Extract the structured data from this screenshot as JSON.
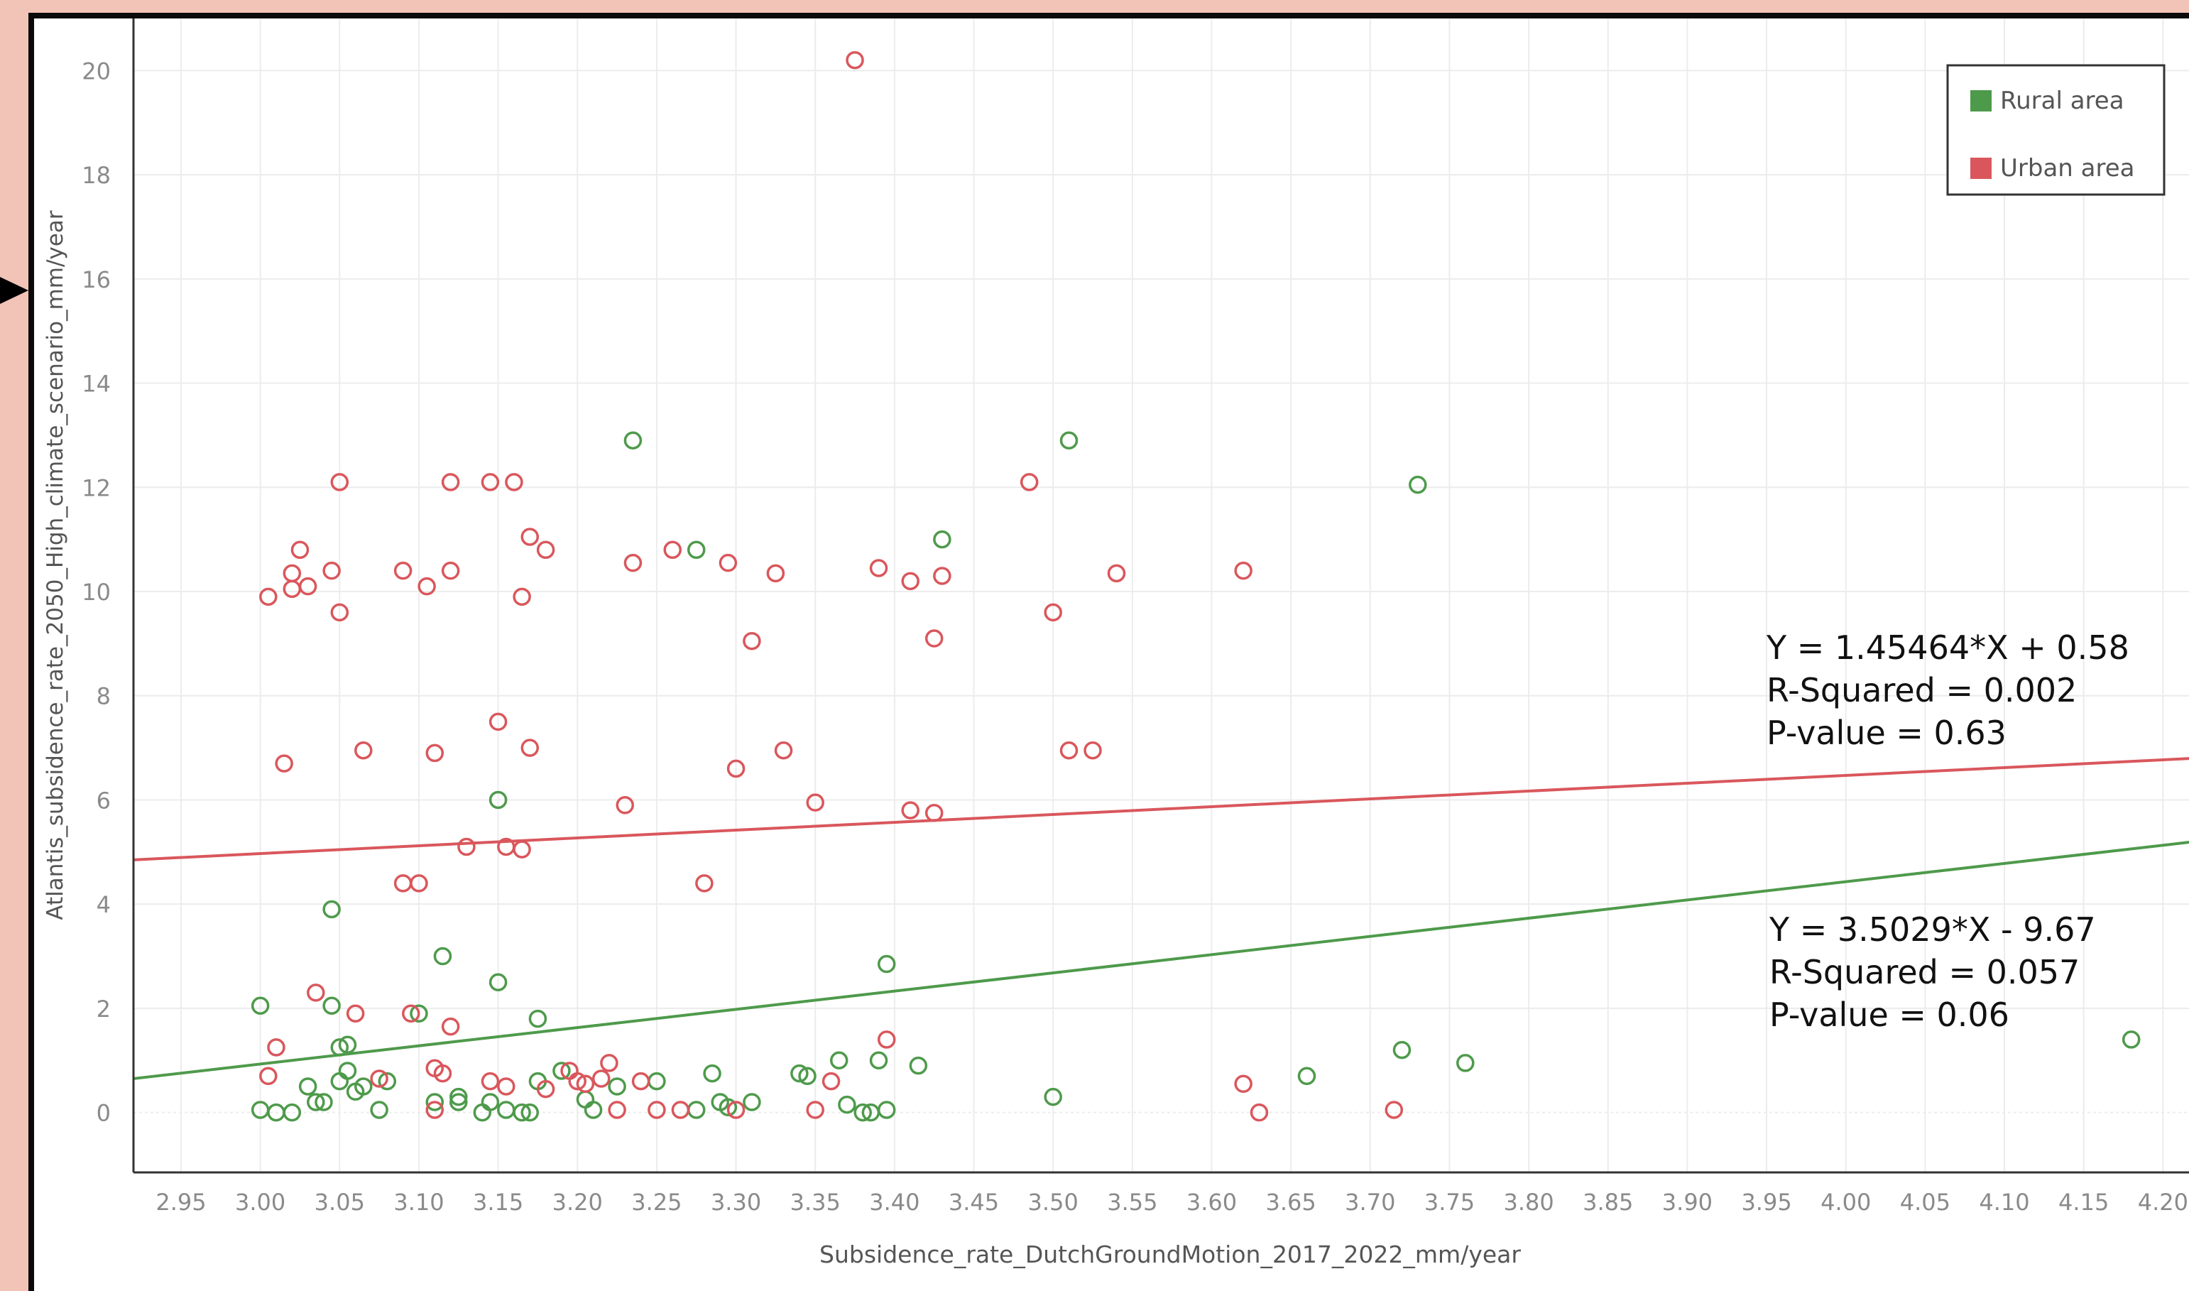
{
  "colors": {
    "background": "#f2c4b8",
    "frame_border": "#0a0a0a",
    "rural": "#4e9a4b",
    "urban": "#d9575c",
    "grid": "#ececec",
    "axis_text": "#8a8a8a",
    "axis_line": "#333333"
  },
  "chart_data": {
    "type": "scatter",
    "xlabel": "Subsidence_rate_DutchGroundMotion_2017_2022_mm/year",
    "ylabel": "Atlantis_subsidence_rate_2050_High_climate_scenario_mm/year",
    "xlim": [
      2.92,
      4.22
    ],
    "ylim": [
      -1.15,
      21.0
    ],
    "x_ticks": [
      "2.95",
      "3.00",
      "3.05",
      "3.10",
      "3.15",
      "3.20",
      "3.25",
      "3.30",
      "3.35",
      "3.40",
      "3.45",
      "3.50",
      "3.55",
      "3.60",
      "3.65",
      "3.70",
      "3.75",
      "3.80",
      "3.85",
      "3.90",
      "3.95",
      "4.00",
      "4.05",
      "4.10",
      "4.15",
      "4.20"
    ],
    "y_ticks": [
      "0",
      "2",
      "4",
      "6",
      "8",
      "10",
      "12",
      "14",
      "16",
      "18",
      "20"
    ],
    "grid": true,
    "legend": {
      "position": "top-right",
      "entries": [
        {
          "label": "Rural area",
          "color": "#4e9a4b"
        },
        {
          "label": "Urban area",
          "color": "#d9575c"
        }
      ]
    },
    "annotations": {
      "urban": [
        "Y = 1.45464*X + 0.58",
        "R-Squared = 0.002",
        "P-value = 0.63"
      ],
      "rural": [
        "Y = 3.5029*X - 9.67",
        "R-Squared = 0.057",
        "P-value = 0.06"
      ]
    },
    "series": [
      {
        "name": "Rural area",
        "color": "#4e9a4b",
        "trendline": {
          "y_at_xmin": 0.65,
          "y_at_xmax": 5.2
        },
        "points": [
          [
            3.0,
            0.05
          ],
          [
            3.0,
            2.05
          ],
          [
            3.01,
            0.0
          ],
          [
            3.02,
            0.0
          ],
          [
            3.03,
            0.5
          ],
          [
            3.035,
            0.2
          ],
          [
            3.04,
            0.2
          ],
          [
            3.045,
            2.05
          ],
          [
            3.045,
            3.9
          ],
          [
            3.05,
            1.25
          ],
          [
            3.05,
            0.6
          ],
          [
            3.055,
            0.8
          ],
          [
            3.055,
            1.3
          ],
          [
            3.06,
            0.4
          ],
          [
            3.065,
            0.5
          ],
          [
            3.075,
            0.05
          ],
          [
            3.08,
            0.6
          ],
          [
            3.1,
            1.9
          ],
          [
            3.11,
            0.2
          ],
          [
            3.115,
            3.0
          ],
          [
            3.125,
            0.3
          ],
          [
            3.125,
            0.2
          ],
          [
            3.14,
            0.0
          ],
          [
            3.145,
            0.2
          ],
          [
            3.15,
            6.0
          ],
          [
            3.15,
            2.5
          ],
          [
            3.155,
            0.05
          ],
          [
            3.165,
            0.0
          ],
          [
            3.17,
            0.0
          ],
          [
            3.175,
            1.8
          ],
          [
            3.175,
            0.6
          ],
          [
            3.19,
            0.8
          ],
          [
            3.205,
            0.25
          ],
          [
            3.21,
            0.05
          ],
          [
            3.225,
            0.5
          ],
          [
            3.235,
            12.9
          ],
          [
            3.25,
            0.6
          ],
          [
            3.275,
            10.8
          ],
          [
            3.275,
            0.05
          ],
          [
            3.285,
            0.75
          ],
          [
            3.29,
            0.2
          ],
          [
            3.295,
            0.1
          ],
          [
            3.31,
            0.2
          ],
          [
            3.34,
            0.75
          ],
          [
            3.345,
            0.7
          ],
          [
            3.365,
            1.0
          ],
          [
            3.37,
            0.15
          ],
          [
            3.38,
            0.0
          ],
          [
            3.385,
            0.0
          ],
          [
            3.39,
            1.0
          ],
          [
            3.395,
            0.05
          ],
          [
            3.395,
            2.85
          ],
          [
            3.415,
            0.9
          ],
          [
            3.43,
            11.0
          ],
          [
            3.5,
            0.3
          ],
          [
            3.51,
            12.9
          ],
          [
            3.66,
            0.7
          ],
          [
            3.72,
            1.2
          ],
          [
            3.73,
            12.05
          ],
          [
            3.76,
            0.95
          ],
          [
            4.18,
            1.4
          ]
        ]
      },
      {
        "name": "Urban area",
        "color": "#d9575c",
        "trendline": {
          "y_at_xmin": 4.85,
          "y_at_xmax": 6.8
        },
        "points": [
          [
            3.005,
            9.9
          ],
          [
            3.005,
            0.7
          ],
          [
            3.01,
            1.25
          ],
          [
            3.015,
            6.7
          ],
          [
            3.02,
            10.35
          ],
          [
            3.02,
            10.05
          ],
          [
            3.025,
            10.8
          ],
          [
            3.03,
            10.1
          ],
          [
            3.035,
            2.3
          ],
          [
            3.045,
            10.4
          ],
          [
            3.05,
            12.1
          ],
          [
            3.05,
            9.6
          ],
          [
            3.06,
            1.9
          ],
          [
            3.065,
            6.95
          ],
          [
            3.075,
            0.65
          ],
          [
            3.09,
            10.4
          ],
          [
            3.09,
            4.4
          ],
          [
            3.095,
            1.9
          ],
          [
            3.1,
            4.4
          ],
          [
            3.105,
            10.1
          ],
          [
            3.11,
            6.9
          ],
          [
            3.11,
            0.85
          ],
          [
            3.11,
            0.05
          ],
          [
            3.115,
            0.75
          ],
          [
            3.12,
            12.1
          ],
          [
            3.12,
            10.4
          ],
          [
            3.12,
            1.65
          ],
          [
            3.13,
            5.1
          ],
          [
            3.145,
            12.1
          ],
          [
            3.145,
            0.6
          ],
          [
            3.15,
            7.5
          ],
          [
            3.155,
            5.1
          ],
          [
            3.155,
            0.5
          ],
          [
            3.16,
            12.1
          ],
          [
            3.165,
            5.05
          ],
          [
            3.165,
            9.9
          ],
          [
            3.17,
            11.05
          ],
          [
            3.17,
            7.0
          ],
          [
            3.18,
            10.8
          ],
          [
            3.18,
            0.45
          ],
          [
            3.195,
            0.8
          ],
          [
            3.2,
            0.6
          ],
          [
            3.205,
            0.55
          ],
          [
            3.215,
            0.65
          ],
          [
            3.22,
            0.95
          ],
          [
            3.225,
            0.05
          ],
          [
            3.23,
            5.9
          ],
          [
            3.235,
            10.55
          ],
          [
            3.24,
            0.6
          ],
          [
            3.25,
            0.05
          ],
          [
            3.26,
            10.8
          ],
          [
            3.265,
            0.05
          ],
          [
            3.28,
            4.4
          ],
          [
            3.295,
            10.55
          ],
          [
            3.3,
            6.6
          ],
          [
            3.3,
            0.05
          ],
          [
            3.31,
            9.05
          ],
          [
            3.325,
            10.35
          ],
          [
            3.33,
            6.95
          ],
          [
            3.35,
            5.95
          ],
          [
            3.35,
            0.05
          ],
          [
            3.36,
            0.6
          ],
          [
            3.375,
            20.2
          ],
          [
            3.39,
            10.45
          ],
          [
            3.395,
            1.4
          ],
          [
            3.41,
            5.8
          ],
          [
            3.41,
            10.2
          ],
          [
            3.425,
            5.75
          ],
          [
            3.425,
            9.1
          ],
          [
            3.43,
            10.3
          ],
          [
            3.485,
            12.1
          ],
          [
            3.5,
            9.6
          ],
          [
            3.51,
            6.95
          ],
          [
            3.525,
            6.95
          ],
          [
            3.54,
            10.35
          ],
          [
            3.62,
            10.4
          ],
          [
            3.62,
            0.55
          ],
          [
            3.63,
            0.0
          ],
          [
            3.715,
            0.05
          ]
        ]
      }
    ]
  }
}
